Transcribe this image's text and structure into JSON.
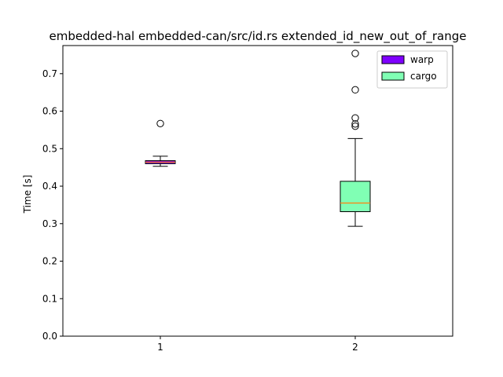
{
  "chart_data": {
    "type": "boxplot",
    "title": "embedded-hal embedded-can/src/id.rs extended_id_new_out_of_range",
    "xlabel": "",
    "ylabel": "Time [s]",
    "categories": [
      "1",
      "2"
    ],
    "ylim": [
      0.0,
      0.775
    ],
    "yticks": [
      "0.0",
      "0.1",
      "0.2",
      "0.3",
      "0.4",
      "0.5",
      "0.6",
      "0.7"
    ],
    "grid": false,
    "legend_position": "top-right",
    "series": [
      {
        "name": "warp",
        "color": "#7f00ff",
        "category": "1",
        "whisker_low": 0.453,
        "q1": 0.46,
        "median": 0.464,
        "q3": 0.468,
        "whisker_high": 0.48,
        "outliers": [
          0.567
        ]
      },
      {
        "name": "cargo",
        "color": "#80ffb4",
        "category": "2",
        "whisker_low": 0.293,
        "q1": 0.332,
        "median": 0.355,
        "q3": 0.413,
        "whisker_high": 0.527,
        "outliers": [
          0.56,
          0.566,
          0.582,
          0.657,
          0.754
        ]
      }
    ],
    "median_color": "#ff7f0e"
  }
}
